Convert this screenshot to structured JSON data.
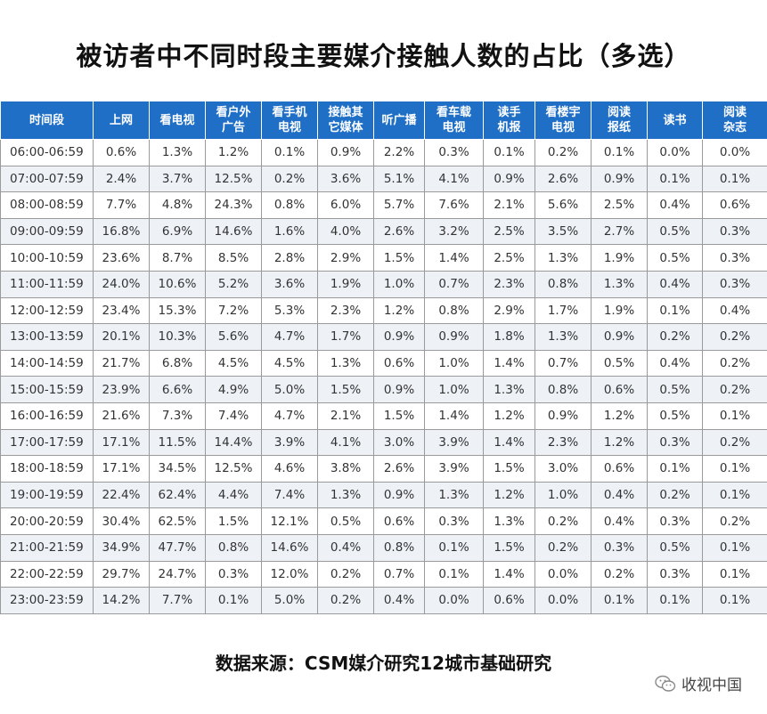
{
  "title": "被访者中不同时段主要媒介接触人数的占比（多选）",
  "source": "数据来源：CSM媒介研究12城市基础研究",
  "watermark": "收视中国",
  "chart_data": {
    "type": "table",
    "columns": [
      "时间段",
      "上网",
      "看电视",
      "看户外广告",
      "看手机电视",
      "接触其它媒体",
      "听广播",
      "看车载电视",
      "读手机报",
      "看楼宇电视",
      "阅读报纸",
      "读书",
      "阅读杂志"
    ],
    "column_lines": [
      [
        "时间段"
      ],
      [
        "上网"
      ],
      [
        "看电视"
      ],
      [
        "看户外",
        "广告"
      ],
      [
        "看手机",
        "电视"
      ],
      [
        "接触其",
        "它媒体"
      ],
      [
        "听广播"
      ],
      [
        "看车载",
        "电视"
      ],
      [
        "读手",
        "机报"
      ],
      [
        "看楼宇",
        "电视"
      ],
      [
        "阅读",
        "报纸"
      ],
      [
        "读书"
      ],
      [
        "阅读",
        "杂志"
      ]
    ],
    "rows": [
      [
        "06:00-06:59",
        "0.6%",
        "1.3%",
        "1.2%",
        "0.1%",
        "0.9%",
        "2.2%",
        "0.3%",
        "0.1%",
        "0.2%",
        "0.1%",
        "0.0%",
        "0.0%"
      ],
      [
        "07:00-07:59",
        "2.4%",
        "3.7%",
        "12.5%",
        "0.2%",
        "3.6%",
        "5.1%",
        "4.1%",
        "0.9%",
        "2.6%",
        "0.9%",
        "0.1%",
        "0.1%"
      ],
      [
        "08:00-08:59",
        "7.7%",
        "4.8%",
        "24.3%",
        "0.8%",
        "6.0%",
        "5.7%",
        "7.6%",
        "2.1%",
        "5.6%",
        "2.5%",
        "0.4%",
        "0.6%"
      ],
      [
        "09:00-09:59",
        "16.8%",
        "6.9%",
        "14.6%",
        "1.6%",
        "4.0%",
        "2.6%",
        "3.2%",
        "2.5%",
        "3.5%",
        "2.7%",
        "0.5%",
        "0.3%"
      ],
      [
        "10:00-10:59",
        "23.6%",
        "8.7%",
        "8.5%",
        "2.8%",
        "2.9%",
        "1.5%",
        "1.4%",
        "2.5%",
        "1.3%",
        "1.9%",
        "0.5%",
        "0.3%"
      ],
      [
        "11:00-11:59",
        "24.0%",
        "10.6%",
        "5.2%",
        "3.6%",
        "1.9%",
        "1.0%",
        "0.7%",
        "2.3%",
        "0.8%",
        "1.3%",
        "0.4%",
        "0.3%"
      ],
      [
        "12:00-12:59",
        "23.4%",
        "15.3%",
        "7.2%",
        "5.3%",
        "2.3%",
        "1.2%",
        "0.8%",
        "2.9%",
        "1.7%",
        "1.9%",
        "0.1%",
        "0.4%"
      ],
      [
        "13:00-13:59",
        "20.1%",
        "10.3%",
        "5.6%",
        "4.7%",
        "1.7%",
        "0.9%",
        "0.9%",
        "1.8%",
        "1.3%",
        "0.9%",
        "0.2%",
        "0.2%"
      ],
      [
        "14:00-14:59",
        "21.7%",
        "6.8%",
        "4.5%",
        "4.5%",
        "1.3%",
        "0.6%",
        "1.0%",
        "1.4%",
        "0.7%",
        "0.5%",
        "0.4%",
        "0.2%"
      ],
      [
        "15:00-15:59",
        "23.9%",
        "6.6%",
        "4.9%",
        "5.0%",
        "1.5%",
        "0.9%",
        "1.0%",
        "1.3%",
        "0.8%",
        "0.6%",
        "0.5%",
        "0.2%"
      ],
      [
        "16:00-16:59",
        "21.6%",
        "7.3%",
        "7.4%",
        "4.7%",
        "2.1%",
        "1.5%",
        "1.4%",
        "1.2%",
        "0.9%",
        "1.2%",
        "0.5%",
        "0.1%"
      ],
      [
        "17:00-17:59",
        "17.1%",
        "11.5%",
        "14.4%",
        "3.9%",
        "4.1%",
        "3.0%",
        "3.9%",
        "1.4%",
        "2.3%",
        "1.2%",
        "0.3%",
        "0.2%"
      ],
      [
        "18:00-18:59",
        "17.1%",
        "34.5%",
        "12.5%",
        "4.6%",
        "3.8%",
        "2.6%",
        "3.9%",
        "1.5%",
        "3.0%",
        "0.6%",
        "0.1%",
        "0.1%"
      ],
      [
        "19:00-19:59",
        "22.4%",
        "62.4%",
        "4.4%",
        "7.4%",
        "1.3%",
        "0.9%",
        "1.3%",
        "1.2%",
        "1.0%",
        "0.4%",
        "0.2%",
        "0.1%"
      ],
      [
        "20:00-20:59",
        "30.4%",
        "62.5%",
        "1.5%",
        "12.1%",
        "0.5%",
        "0.6%",
        "0.3%",
        "1.3%",
        "0.2%",
        "0.4%",
        "0.3%",
        "0.2%"
      ],
      [
        "21:00-21:59",
        "34.9%",
        "47.7%",
        "0.8%",
        "14.6%",
        "0.4%",
        "0.8%",
        "0.1%",
        "1.5%",
        "0.2%",
        "0.3%",
        "0.5%",
        "0.1%"
      ],
      [
        "22:00-22:59",
        "29.7%",
        "24.7%",
        "0.3%",
        "12.0%",
        "0.2%",
        "0.7%",
        "0.1%",
        "1.4%",
        "0.0%",
        "0.2%",
        "0.3%",
        "0.1%"
      ],
      [
        "23:00-23:59",
        "14.2%",
        "7.7%",
        "0.1%",
        "5.0%",
        "0.2%",
        "0.4%",
        "0.0%",
        "0.6%",
        "0.0%",
        "0.1%",
        "0.1%",
        "0.1%"
      ]
    ]
  },
  "colors": {
    "header_bg": "#1f6fc7",
    "header_text": "#ffffff",
    "stripe": "#eef2f7",
    "wechat_icon": "#8a8a8a"
  }
}
